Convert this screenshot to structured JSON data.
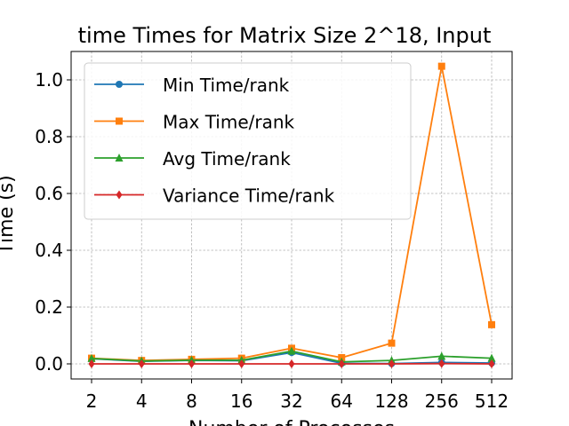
{
  "chart_data": {
    "type": "line",
    "title": "time Times for Matrix Size 2^18, Input",
    "xlabel": "Number of Processes",
    "ylabel": "Time (s)",
    "categories": [
      "2",
      "4",
      "8",
      "16",
      "32",
      "64",
      "128",
      "256",
      "512"
    ],
    "ylim": [
      -0.05,
      1.1
    ],
    "yticks": [
      "0.0",
      "0.2",
      "0.4",
      "0.6",
      "0.8",
      "1.0"
    ],
    "grid": true,
    "legend_position": "upper-left",
    "series": [
      {
        "name": "Min Time/rank",
        "color": "#1f77b4",
        "marker": "circle",
        "values": [
          0.018,
          0.009,
          0.012,
          0.011,
          0.04,
          0.002,
          0.001,
          0.005,
          0.003
        ]
      },
      {
        "name": "Max Time/rank",
        "color": "#ff7f0e",
        "marker": "square",
        "values": [
          0.02,
          0.012,
          0.016,
          0.02,
          0.055,
          0.022,
          0.073,
          1.048,
          0.138
        ]
      },
      {
        "name": "Avg Time/rank",
        "color": "#2ca02c",
        "marker": "triangle",
        "values": [
          0.019,
          0.01,
          0.013,
          0.013,
          0.045,
          0.007,
          0.012,
          0.027,
          0.02
        ]
      },
      {
        "name": "Variance Time/rank",
        "color": "#d62728",
        "marker": "diamond",
        "values": [
          0.0,
          0.0,
          0.0,
          0.0,
          0.0,
          0.0,
          0.0,
          0.001,
          0.0
        ]
      }
    ]
  }
}
